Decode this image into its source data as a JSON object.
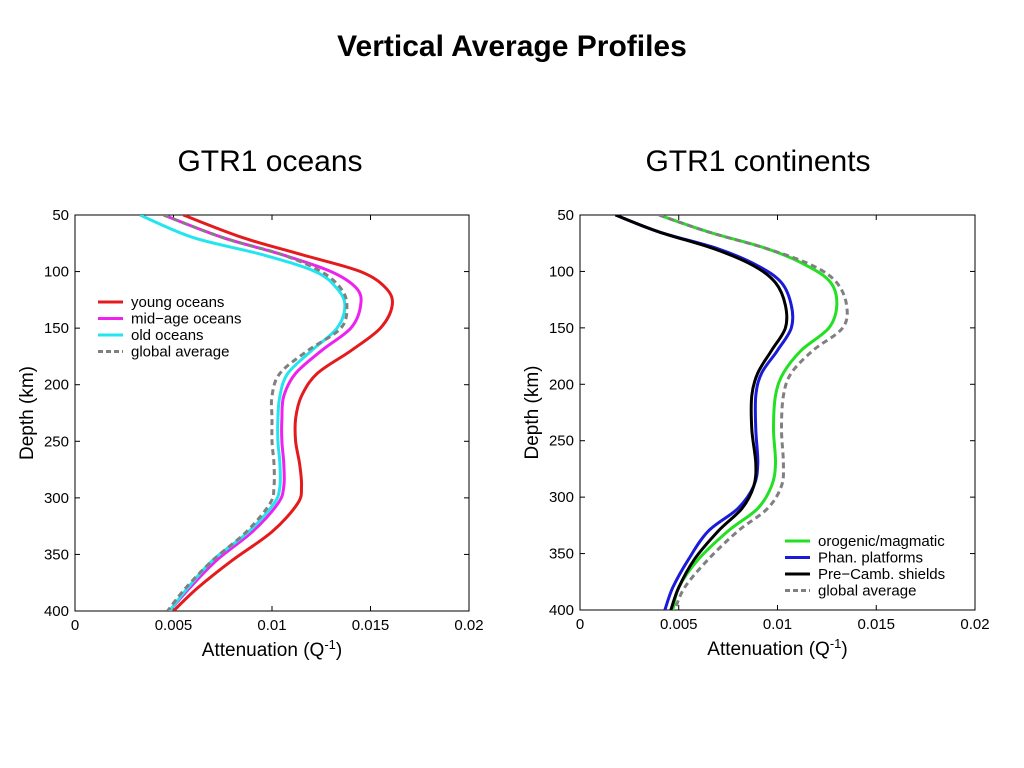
{
  "page_title": "Vertical Average Profiles",
  "chart_data": [
    {
      "type": "line",
      "title": "GTR1 oceans",
      "xlabel": "Attenuation (Q",
      "xlabel_sup": "-1",
      "xlabel_end": ")",
      "ylabel": "Depth (km)",
      "xlim": [
        0,
        0.02
      ],
      "ylim": [
        400,
        50
      ],
      "y_inverted": true,
      "x_ticks": [
        "0",
        "0.005",
        "0.01",
        "0.015",
        "0.02"
      ],
      "x_tick_values": [
        0,
        0.005,
        0.01,
        0.015,
        0.02
      ],
      "y_ticks": [
        "50",
        "100",
        "150",
        "200",
        "250",
        "300",
        "350",
        "400"
      ],
      "y_tick_values": [
        50,
        100,
        150,
        200,
        250,
        300,
        350,
        400
      ],
      "grid": false,
      "legend_position": "top-left",
      "series": [
        {
          "name": "young oceans",
          "color": "#e41a1c",
          "dash": "solid",
          "points": [
            [
              0.0055,
              50
            ],
            [
              0.0085,
              70
            ],
            [
              0.0115,
              85
            ],
            [
              0.0145,
              100
            ],
            [
              0.0158,
              115
            ],
            [
              0.0161,
              130
            ],
            [
              0.0155,
              150
            ],
            [
              0.014,
              170
            ],
            [
              0.0123,
              190
            ],
            [
              0.0115,
              210
            ],
            [
              0.0112,
              230
            ],
            [
              0.0112,
              250
            ],
            [
              0.0114,
              270
            ],
            [
              0.0115,
              290
            ],
            [
              0.0113,
              305
            ],
            [
              0.01,
              330
            ],
            [
              0.008,
              355
            ],
            [
              0.0062,
              380
            ],
            [
              0.005,
              400
            ]
          ]
        },
        {
          "name": "mid−age oceans",
          "color": "#ee22ee",
          "dash": "solid",
          "points": [
            [
              0.0045,
              50
            ],
            [
              0.0075,
              70
            ],
            [
              0.0105,
              85
            ],
            [
              0.013,
              100
            ],
            [
              0.0143,
              115
            ],
            [
              0.0145,
              130
            ],
            [
              0.014,
              150
            ],
            [
              0.0125,
              170
            ],
            [
              0.0112,
              190
            ],
            [
              0.0106,
              210
            ],
            [
              0.0105,
              230
            ],
            [
              0.0105,
              250
            ],
            [
              0.0106,
              270
            ],
            [
              0.0106,
              290
            ],
            [
              0.0103,
              305
            ],
            [
              0.009,
              330
            ],
            [
              0.0072,
              355
            ],
            [
              0.0058,
              380
            ],
            [
              0.0048,
              400
            ]
          ]
        },
        {
          "name": "old oceans",
          "color": "#22e5f0",
          "dash": "solid",
          "points": [
            [
              0.0033,
              50
            ],
            [
              0.006,
              70
            ],
            [
              0.0095,
              85
            ],
            [
              0.0122,
              100
            ],
            [
              0.0133,
              115
            ],
            [
              0.0137,
              130
            ],
            [
              0.0133,
              150
            ],
            [
              0.012,
              170
            ],
            [
              0.0108,
              190
            ],
            [
              0.0104,
              210
            ],
            [
              0.0103,
              230
            ],
            [
              0.0103,
              250
            ],
            [
              0.0104,
              270
            ],
            [
              0.0104,
              290
            ],
            [
              0.0101,
              305
            ],
            [
              0.0088,
              330
            ],
            [
              0.007,
              355
            ],
            [
              0.0057,
              380
            ],
            [
              0.0048,
              400
            ]
          ]
        },
        {
          "name": "global average",
          "color": "#808080",
          "dash": "dashed",
          "points": [
            [
              0.0045,
              50
            ],
            [
              0.0075,
              70
            ],
            [
              0.0105,
              85
            ],
            [
              0.0125,
              100
            ],
            [
              0.0135,
              115
            ],
            [
              0.0138,
              130
            ],
            [
              0.0135,
              150
            ],
            [
              0.0118,
              170
            ],
            [
              0.0104,
              190
            ],
            [
              0.01,
              210
            ],
            [
              0.01,
              230
            ],
            [
              0.01,
              250
            ],
            [
              0.0101,
              270
            ],
            [
              0.0101,
              290
            ],
            [
              0.0099,
              305
            ],
            [
              0.0087,
              330
            ],
            [
              0.007,
              355
            ],
            [
              0.0056,
              380
            ],
            [
              0.0047,
              400
            ]
          ]
        }
      ]
    },
    {
      "type": "line",
      "title": "GTR1 continents",
      "xlabel": "Attenuation (Q",
      "xlabel_sup": "-1",
      "xlabel_end": ")",
      "ylabel": "Depth (km)",
      "xlim": [
        0,
        0.02
      ],
      "ylim": [
        400,
        50
      ],
      "y_inverted": true,
      "x_ticks": [
        "0",
        "0.005",
        "0.01",
        "0.015",
        "0.02"
      ],
      "x_tick_values": [
        0,
        0.005,
        0.01,
        0.015,
        0.02
      ],
      "y_ticks": [
        "50",
        "100",
        "150",
        "200",
        "250",
        "300",
        "350",
        "400"
      ],
      "y_tick_values": [
        50,
        100,
        150,
        200,
        250,
        300,
        350,
        400
      ],
      "grid": false,
      "legend_position": "bottom-right",
      "series": [
        {
          "name": "orogenic/magmatic",
          "color": "#22e022",
          "dash": "solid",
          "points": [
            [
              0.004,
              50
            ],
            [
              0.0065,
              65
            ],
            [
              0.0095,
              80
            ],
            [
              0.0115,
              95
            ],
            [
              0.0127,
              110
            ],
            [
              0.013,
              130
            ],
            [
              0.0126,
              150
            ],
            [
              0.0112,
              170
            ],
            [
              0.0103,
              190
            ],
            [
              0.0099,
              210
            ],
            [
              0.0098,
              240
            ],
            [
              0.0099,
              270
            ],
            [
              0.0097,
              290
            ],
            [
              0.009,
              310
            ],
            [
              0.0075,
              330
            ],
            [
              0.006,
              355
            ],
            [
              0.005,
              380
            ],
            [
              0.0047,
              400
            ]
          ]
        },
        {
          "name": "Phan. platforms",
          "color": "#1a1ad8",
          "dash": "solid",
          "points": [
            [
              0.0018,
              50
            ],
            [
              0.004,
              65
            ],
            [
              0.007,
              80
            ],
            [
              0.009,
              95
            ],
            [
              0.0102,
              110
            ],
            [
              0.0107,
              130
            ],
            [
              0.0107,
              150
            ],
            [
              0.01,
              170
            ],
            [
              0.0092,
              190
            ],
            [
              0.0089,
              210
            ],
            [
              0.0089,
              240
            ],
            [
              0.009,
              270
            ],
            [
              0.0088,
              290
            ],
            [
              0.008,
              310
            ],
            [
              0.0065,
              330
            ],
            [
              0.0055,
              355
            ],
            [
              0.0047,
              380
            ],
            [
              0.0043,
              400
            ]
          ]
        },
        {
          "name": "Pre−Camb. shields",
          "color": "#000000",
          "dash": "solid",
          "points": [
            [
              0.0018,
              50
            ],
            [
              0.004,
              65
            ],
            [
              0.0068,
              80
            ],
            [
              0.0088,
              95
            ],
            [
              0.0099,
              110
            ],
            [
              0.0104,
              130
            ],
            [
              0.0104,
              150
            ],
            [
              0.0097,
              170
            ],
            [
              0.009,
              190
            ],
            [
              0.0087,
              210
            ],
            [
              0.0087,
              240
            ],
            [
              0.0089,
              270
            ],
            [
              0.0088,
              290
            ],
            [
              0.0082,
              310
            ],
            [
              0.007,
              330
            ],
            [
              0.0058,
              355
            ],
            [
              0.005,
              380
            ],
            [
              0.0046,
              400
            ]
          ]
        },
        {
          "name": "global average",
          "color": "#808080",
          "dash": "dashed",
          "points": [
            [
              0.004,
              50
            ],
            [
              0.0065,
              65
            ],
            [
              0.0095,
              80
            ],
            [
              0.0118,
              95
            ],
            [
              0.013,
              110
            ],
            [
              0.0135,
              130
            ],
            [
              0.0133,
              150
            ],
            [
              0.0118,
              170
            ],
            [
              0.0107,
              190
            ],
            [
              0.0103,
              210
            ],
            [
              0.0102,
              240
            ],
            [
              0.0103,
              270
            ],
            [
              0.0102,
              290
            ],
            [
              0.0095,
              310
            ],
            [
              0.008,
              330
            ],
            [
              0.0065,
              355
            ],
            [
              0.0053,
              380
            ],
            [
              0.0048,
              400
            ]
          ]
        }
      ]
    }
  ]
}
